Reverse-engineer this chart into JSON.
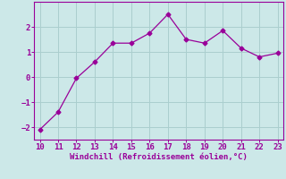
{
  "x": [
    10,
    11,
    12,
    13,
    14,
    15,
    16,
    17,
    18,
    19,
    20,
    21,
    22,
    23
  ],
  "y": [
    -2.1,
    -1.4,
    -0.05,
    0.6,
    1.35,
    1.35,
    1.75,
    2.5,
    1.5,
    1.35,
    1.85,
    1.15,
    0.8,
    0.95
  ],
  "line_color": "#990099",
  "marker": "D",
  "marker_size": 2.5,
  "bg_color": "#cce8e8",
  "grid_color": "#aacece",
  "xlabel": "Windchill (Refroidissement éolien,°C)",
  "xlabel_color": "#990099",
  "tick_color": "#990099",
  "spine_color": "#990099",
  "xlim": [
    9.7,
    23.3
  ],
  "ylim": [
    -2.5,
    3.0
  ],
  "yticks": [
    -2,
    -1,
    0,
    1,
    2
  ],
  "xticks": [
    10,
    11,
    12,
    13,
    14,
    15,
    16,
    17,
    18,
    19,
    20,
    21,
    22,
    23
  ],
  "tick_fontsize": 6.5,
  "xlabel_fontsize": 6.5
}
